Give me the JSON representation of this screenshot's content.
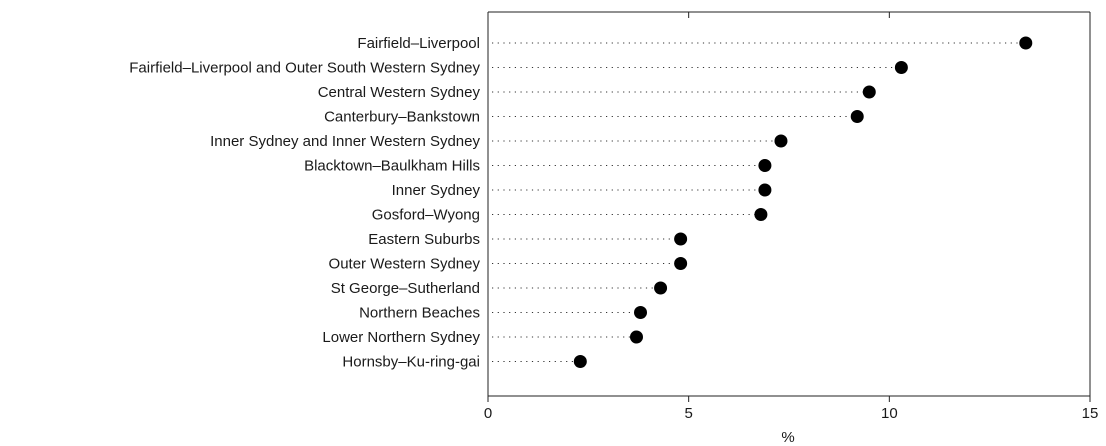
{
  "chart_data": {
    "type": "scatter",
    "style": "dot-plot",
    "title": "",
    "xlabel": "%",
    "ylabel": "",
    "xlim": [
      0,
      15
    ],
    "xticks": [
      0,
      5,
      10,
      15
    ],
    "xtick_labels": [
      "0",
      "5",
      "10",
      "15"
    ],
    "grid": false,
    "categories": [
      "Fairfield–Liverpool",
      "Fairfield–Liverpool and Outer South Western Sydney",
      "Central Western Sydney",
      "Canterbury–Bankstown",
      "Inner Sydney and Inner Western Sydney",
      "Blacktown–Baulkham Hills",
      "Inner Sydney",
      "Gosford–Wyong",
      "Eastern Suburbs",
      "Outer Western Sydney",
      "St George–Sutherland",
      "Northern Beaches",
      "Lower Northern Sydney",
      "Hornsby–Ku-ring-gai"
    ],
    "values": [
      13.4,
      10.3,
      9.5,
      9.2,
      7.3,
      6.9,
      6.9,
      6.8,
      4.8,
      4.8,
      4.3,
      3.8,
      3.7,
      2.3
    ],
    "marker_color": "#000000",
    "leader_style": "dotted"
  }
}
